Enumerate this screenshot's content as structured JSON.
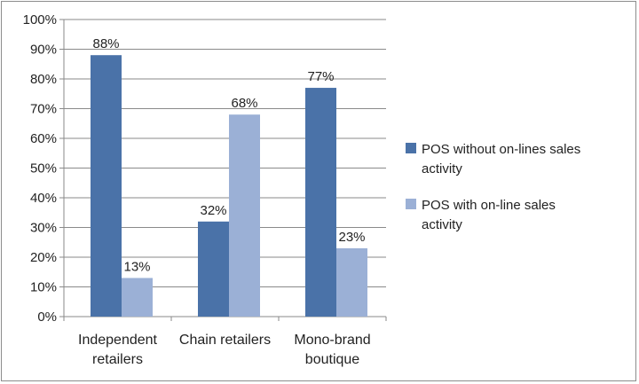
{
  "chart_data": {
    "type": "bar",
    "categories": [
      [
        "Independent",
        "retailers"
      ],
      [
        "Chain retailers"
      ],
      [
        "Mono-brand",
        "boutique"
      ]
    ],
    "series": [
      {
        "name": [
          "POS without on-lines sales",
          "activity"
        ],
        "values": [
          88,
          32,
          77
        ],
        "labels": [
          "88%",
          "32%",
          "77%"
        ],
        "color": "#4a72a8"
      },
      {
        "name": [
          "POS with on-line sales",
          "activity"
        ],
        "values": [
          13,
          68,
          23
        ],
        "labels": [
          "13%",
          "68%",
          "23%"
        ],
        "color": "#9bb0d6"
      }
    ],
    "ylim": [
      0,
      100
    ],
    "yticks": [
      "0%",
      "10%",
      "20%",
      "30%",
      "40%",
      "50%",
      "60%",
      "70%",
      "80%",
      "90%",
      "100%"
    ],
    "grid": true,
    "legend_position": "right"
  }
}
